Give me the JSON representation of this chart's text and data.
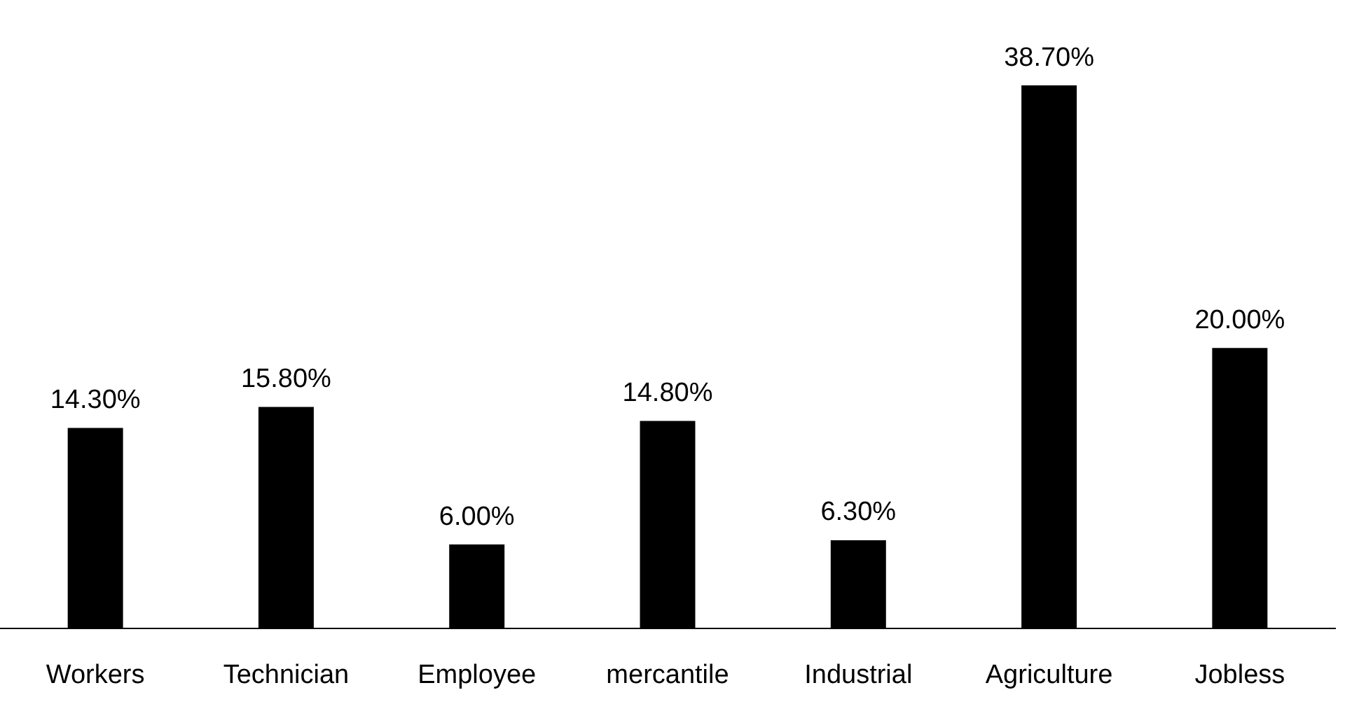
{
  "chart_data": {
    "type": "bar",
    "categories": [
      "Workers",
      "Technician",
      "Employee",
      "mercantile",
      "Industrial",
      "Agriculture",
      "Jobless"
    ],
    "values": [
      14.3,
      15.8,
      6.0,
      14.8,
      6.3,
      38.7,
      20.0
    ],
    "value_labels": [
      "14.30%",
      "15.80%",
      "6.00%",
      "14.80%",
      "6.30%",
      "38.70%",
      "20.00%"
    ],
    "color": "#000000",
    "grid": false,
    "legend": false
  }
}
